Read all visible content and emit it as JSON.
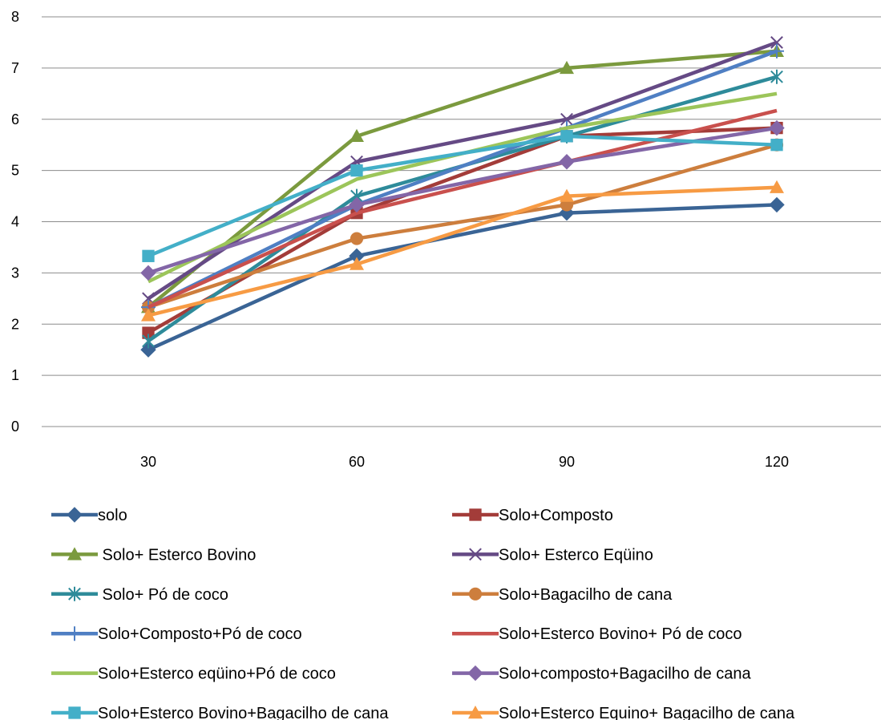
{
  "chart_data": {
    "type": "line",
    "title": "",
    "xlabel": "",
    "ylabel": "",
    "categories": [
      "30",
      "60",
      "90",
      "120"
    ],
    "ylim": [
      0,
      8
    ],
    "yticks": [
      "0",
      "1",
      "2",
      "3",
      "4",
      "5",
      "6",
      "7",
      "8"
    ],
    "grid": "horizontal",
    "legend_position": "bottom",
    "series": [
      {
        "name": "solo",
        "color": "#3A6495",
        "marker": "diamond",
        "values": [
          1.5,
          3.33,
          4.17,
          4.33
        ]
      },
      {
        "name": "Solo+Composto",
        "color": "#A33C39",
        "marker": "square",
        "values": [
          1.83,
          4.17,
          5.67,
          5.83
        ]
      },
      {
        "name": " Solo+ Esterco Bovino",
        "color": "#7B9A3E",
        "marker": "triangle",
        "values": [
          2.33,
          5.67,
          7.0,
          7.33
        ]
      },
      {
        "name": "Solo+ Esterco Eqüino",
        "color": "#654A85",
        "marker": "x",
        "values": [
          2.5,
          5.17,
          6.0,
          7.5
        ]
      },
      {
        "name": " Solo+ Pó de coco",
        "color": "#2E8B9A",
        "marker": "star",
        "values": [
          1.67,
          4.5,
          5.67,
          6.83
        ]
      },
      {
        "name": "Solo+Bagacilho de cana",
        "color": "#CD7E3D",
        "marker": "circle",
        "values": [
          2.33,
          3.67,
          4.33,
          5.5
        ]
      },
      {
        "name": "Solo+Composto+Pó de coco",
        "color": "#4F7FC3",
        "marker": "plus",
        "values": [
          2.33,
          4.33,
          5.83,
          7.33
        ]
      },
      {
        "name": "Solo+Esterco Bovino+ Pó de coco",
        "color": "#C9504D",
        "marker": "none",
        "values": [
          2.33,
          4.17,
          5.17,
          6.17
        ]
      },
      {
        "name": "Solo+Esterco eqüino+Pó de coco",
        "color": "#9CC55A",
        "marker": "none",
        "values": [
          2.83,
          4.83,
          5.83,
          6.5
        ]
      },
      {
        "name": "Solo+composto+Bagacilho de cana",
        "color": "#8366A7",
        "marker": "diamond",
        "values": [
          3.0,
          4.33,
          5.17,
          5.83
        ]
      },
      {
        "name": "Solo+Esterco Bovino+Bagacilho de cana",
        "color": "#43AFC8",
        "marker": "square",
        "values": [
          3.33,
          5.0,
          5.67,
          5.5
        ]
      },
      {
        "name": "Solo+Esterco Equino+ Bagacilho de cana",
        "color": "#F79B44",
        "marker": "triangle",
        "values": [
          2.17,
          3.17,
          4.5,
          4.67
        ]
      }
    ]
  }
}
